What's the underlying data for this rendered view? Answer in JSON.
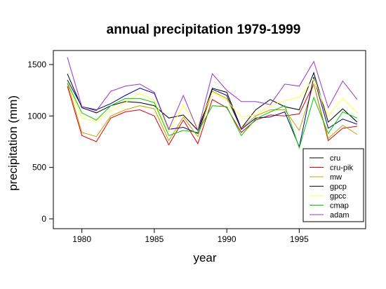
{
  "chart_data": {
    "type": "line",
    "title": "annual precipitation 1979-1999",
    "xlabel": "year",
    "ylabel": "precipitation (mm)",
    "xlim": [
      1979,
      1999
    ],
    "ylim": [
      0,
      1600
    ],
    "x_ticks": [
      "1980",
      "1985",
      "1990",
      "1995"
    ],
    "y_ticks": [
      "0",
      "500",
      "1000",
      "1500"
    ],
    "grid": false,
    "legend_position": "bottom-right",
    "x": [
      1979,
      1980,
      1981,
      1982,
      1983,
      1984,
      1985,
      1986,
      1987,
      1988,
      1989,
      1990,
      1991,
      1992,
      1993,
      1994,
      1995,
      1996,
      1997,
      1998,
      1999
    ],
    "series": [
      {
        "name": "cru",
        "color": "#000000",
        "values": [
          1410,
          1080,
          1030,
          1100,
          1140,
          1130,
          1100,
          980,
          1010,
          860,
          1270,
          1230,
          880,
          1060,
          1160,
          1090,
          1060,
          1420,
          940,
          1070,
          940
        ]
      },
      {
        "name": "cru-pik",
        "color": "#e00000",
        "values": [
          1290,
          810,
          750,
          980,
          1040,
          1060,
          1000,
          720,
          960,
          730,
          1160,
          1080,
          840,
          960,
          1010,
          1000,
          1020,
          1310,
          760,
          880,
          900
        ]
      },
      {
        "name": "mw",
        "color": "#c8a000",
        "values": [
          1320,
          840,
          800,
          1000,
          1060,
          1100,
          1070,
          760,
          990,
          800,
          1240,
          1170,
          880,
          1000,
          1060,
          1060,
          860,
          1310,
          780,
          910,
          820
        ]
      },
      {
        "name": "gpcp",
        "color": "#000080",
        "values": [
          1350,
          1090,
          1060,
          1120,
          1200,
          1270,
          1220,
          870,
          890,
          830,
          1260,
          1200,
          870,
          980,
          990,
          1040,
          700,
          1380,
          880,
          970,
          920
        ]
      },
      {
        "name": "gpcc",
        "color": "#ffff40",
        "values": [
          1330,
          980,
          950,
          1050,
          1130,
          1220,
          1150,
          850,
          1100,
          900,
          1230,
          1150,
          990,
          1010,
          1100,
          1150,
          1180,
          1360,
          1000,
          1170,
          1030
        ]
      },
      {
        "name": "cmap",
        "color": "#00cc00",
        "values": [
          1320,
          1030,
          960,
          1100,
          1170,
          1170,
          1130,
          810,
          860,
          840,
          1100,
          1090,
          810,
          970,
          1040,
          1100,
          690,
          1180,
          830,
          1040,
          980
        ]
      },
      {
        "name": "adam",
        "color": "#9933cc",
        "values": [
          1570,
          1090,
          1050,
          1240,
          1290,
          1310,
          1230,
          870,
          1200,
          860,
          1410,
          1250,
          1140,
          1140,
          1110,
          1310,
          1290,
          1530,
          1080,
          1340,
          1160
        ]
      }
    ]
  }
}
